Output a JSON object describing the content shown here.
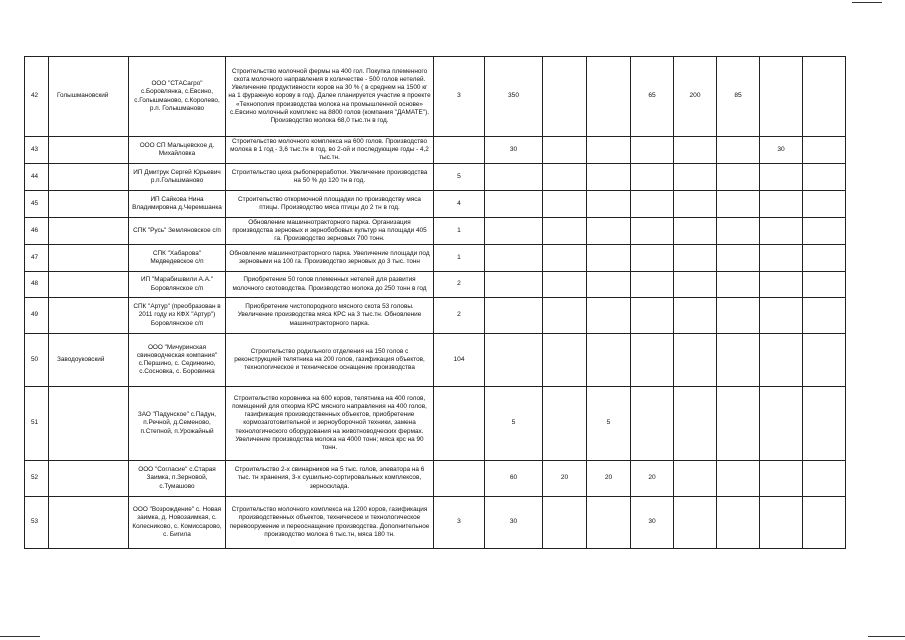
{
  "rows": [
    {
      "num": "42",
      "district": "Голышмановский",
      "org": "ООО \"СТАСагро\" с.Боровлянка, с.Евсино, с.Голышманово, с.Королево, р.п. Голышманово",
      "description": "Строительство молочной фермы на 400 гол. Покупка племенного скота молочного направления в количестве - 500 голов нетелей. Увеличение продуктивности коров на 30 % ( в среднем на 1500 кг на 1 фуражную корову в год). Далее планируется участие в проекте «Технополия производства молока на промышленной основе» с.Евсино молочный комплекс на 8800 голов (компания \"ДАМАТЕ\"). Производство молока 68,0 тыс.тн в год.",
      "values": [
        "3",
        "350",
        "",
        "",
        "65",
        "200",
        "85",
        "",
        ""
      ]
    },
    {
      "num": "43",
      "district": "",
      "org": "ООО СП Мальцевское д. Михайловка",
      "description": "Строительство молочного комплекса на 600 голов. Производство молока в 1 год - 3,6 тыс.тн в год, во 2-ой и последующие годы - 4,2 тыс.тн.",
      "values": [
        "",
        "30",
        "",
        "",
        "",
        "",
        "",
        "30",
        ""
      ]
    },
    {
      "num": "44",
      "district": "",
      "org": "ИП Дмитрук Сергей Юрьевич р.п.Голышманово",
      "description": "Строительство цеха рыбопереработки. Увеличение производства на 50 % до 120 тн в год.",
      "values": [
        "5",
        "",
        "",
        "",
        "",
        "",
        "",
        "",
        ""
      ]
    },
    {
      "num": "45",
      "district": "",
      "org": "ИП Сайкова Нина Владимировна д.Черемшанка",
      "description": "Строительство откормочной площадки по производству мяса птицы. Производство мяса птицы до 2 тн в год.",
      "values": [
        "4",
        "",
        "",
        "",
        "",
        "",
        "",
        "",
        ""
      ]
    },
    {
      "num": "46",
      "district": "",
      "org": "СПК \"Русь\" Земляновское с/п",
      "description": "Обновление машиннотракторного парка. Организация производства зерновых и зернобобовых культур на площади 405 га. Производство зерновых 700 тонн.",
      "values": [
        "1",
        "",
        "",
        "",
        "",
        "",
        "",
        "",
        ""
      ]
    },
    {
      "num": "47",
      "district": "",
      "org": "СПК \"Хабарова\" Медведевское с/п",
      "description": "Обновление машиннотракторного парка. Увеличение площади под зерновыми на 100 га. Производство зерновых до 3 тыс. тонн",
      "values": [
        "1",
        "",
        "",
        "",
        "",
        "",
        "",
        "",
        ""
      ]
    },
    {
      "num": "48",
      "district": "",
      "org": "ИП \"Марабишвили А.А.\" Боровлянское с/п",
      "description": "Приобретение 50 голов племенных нетелей для развития молочного скотоводства. Производство молока до 250 тонн в год",
      "values": [
        "2",
        "",
        "",
        "",
        "",
        "",
        "",
        "",
        ""
      ]
    },
    {
      "num": "49",
      "district": "",
      "org": "СПК \"Артур\" (преобразован в 2011 году из КФХ \"Артур\") Боровлянское с/п",
      "description": "Приобретение чистопородного мясного скота 53 головы. Увеличение производства мяса КРС на 3 тыс.тн. Обновление машинотракторного парка.",
      "values": [
        "2",
        "",
        "",
        "",
        "",
        "",
        "",
        "",
        ""
      ]
    },
    {
      "num": "50",
      "district": "Заводоуковский",
      "org": "ООО \"Мичуринская свиноводческая компания\" с.Першино, с. Сединкино, с.Сосновка, с. Боровинка",
      "description": "Строительство родильного отделения на 150 голов с реконструкцией телятника на 200 голов, газификация объектов, технологическое и техническое оснащение производства",
      "values": [
        "104",
        "",
        "",
        "",
        "",
        "",
        "",
        "",
        ""
      ]
    },
    {
      "num": "51",
      "district": "",
      "org": "ЗАО \"Падунское\" с.Падун, п.Речной, д.Семеново, п.Степной, п.Урожайный",
      "description": "Строительство коровника на 600 коров, телятника на 400 голов, помещений для откорма КРС мясного направления на 400 голов, газификация производственных объектов, приобретение кормозаготовительной и зерноуборочной техники, замена технологического оборудования на животноводческих фермах. Увеличение производства молока на 4000 тонн; мяса крс на 90 тонн.",
      "values": [
        "",
        "5",
        "",
        "5",
        "",
        "",
        "",
        "",
        ""
      ]
    },
    {
      "num": "52",
      "district": "",
      "org": "ООО \"Согласие\" с.Старая Заимка, п.Зерновой, с.Тумашово",
      "description": "Строительство 2-х свинарников на 5 тыс. голов, элеватора на 6 тыс. тн хранения, 3-х сушильно-сортировальных комплексов, зерносклада.",
      "values": [
        "",
        "60",
        "20",
        "20",
        "20",
        "",
        "",
        "",
        ""
      ]
    },
    {
      "num": "53",
      "district": "",
      "org": "ООО \"Возрождение\" с. Новая заимка, д. Новозаимкая, с. Колесниково, с. Комиссарово, с. Бигила",
      "description": "Строительство молочного комплекса на 1200 коров, газификация производственных объектов, техническое и технологическое перевооружение и переоснащение производства. Дополнительное производство молока 6 тыс.тн, мяса 180 тн.",
      "values": [
        "3",
        "30",
        "",
        "",
        "30",
        "",
        "",
        "",
        ""
      ]
    }
  ]
}
